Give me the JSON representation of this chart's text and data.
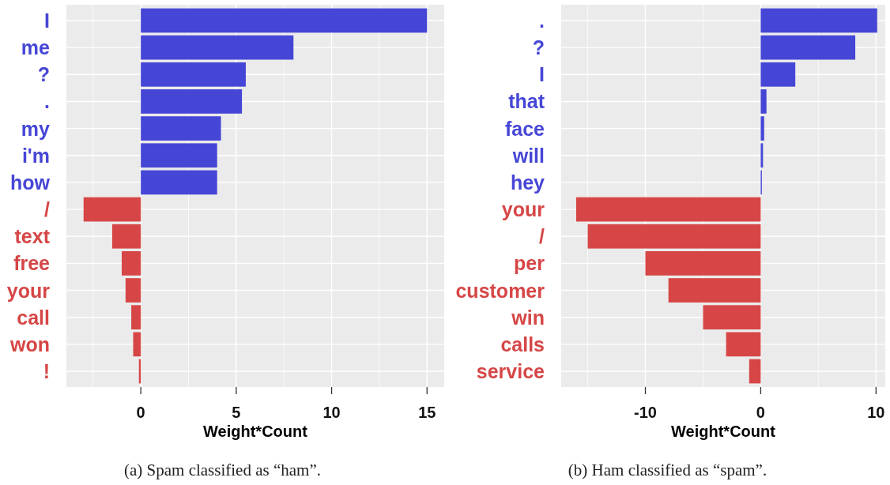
{
  "chart_data": [
    {
      "type": "bar",
      "orientation": "horizontal",
      "categories": [
        "I",
        "me",
        "?",
        ".",
        "my",
        "i'm",
        "how",
        "/",
        "text",
        "free",
        "your",
        "call",
        "won",
        "!"
      ],
      "values": [
        15.0,
        8.0,
        5.5,
        5.3,
        4.2,
        4.0,
        4.0,
        -3.0,
        -1.5,
        -1.0,
        -0.8,
        -0.5,
        -0.4,
        -0.1
      ],
      "colors": [
        "#4646d6",
        "#4646d6",
        "#4646d6",
        "#4646d6",
        "#4646d6",
        "#4646d6",
        "#4646d6",
        "#d64646",
        "#d64646",
        "#d64646",
        "#d64646",
        "#d64646",
        "#d64646",
        "#d64646"
      ],
      "xlim": [
        -3.9,
        15.9
      ],
      "xticks": [
        0,
        5,
        10,
        15
      ],
      "xlabel": "Weight*Count",
      "grid": true,
      "annotations": [
        "(a) Spam classified as “ham”."
      ]
    },
    {
      "type": "bar",
      "orientation": "horizontal",
      "categories": [
        ".",
        "?",
        "I",
        "that",
        "face",
        "will",
        "hey",
        "your",
        "/",
        "per",
        "customer",
        "win",
        "calls",
        "service"
      ],
      "values": [
        10.1,
        8.2,
        3.0,
        0.5,
        0.3,
        0.2,
        0.1,
        -16.0,
        -15.0,
        -10.0,
        -8.0,
        -5.0,
        -3.0,
        -1.0
      ],
      "colors": [
        "#4646d6",
        "#4646d6",
        "#4646d6",
        "#4646d6",
        "#4646d6",
        "#4646d6",
        "#4646d6",
        "#d64646",
        "#d64646",
        "#d64646",
        "#d64646",
        "#d64646",
        "#d64646",
        "#d64646"
      ],
      "xlim": [
        -17.3,
        10.8
      ],
      "xticks": [
        -10,
        0,
        10
      ],
      "xlabel": "Weight*Count",
      "grid": true,
      "annotations": [
        "(b) Ham classified as “spam”."
      ]
    }
  ]
}
